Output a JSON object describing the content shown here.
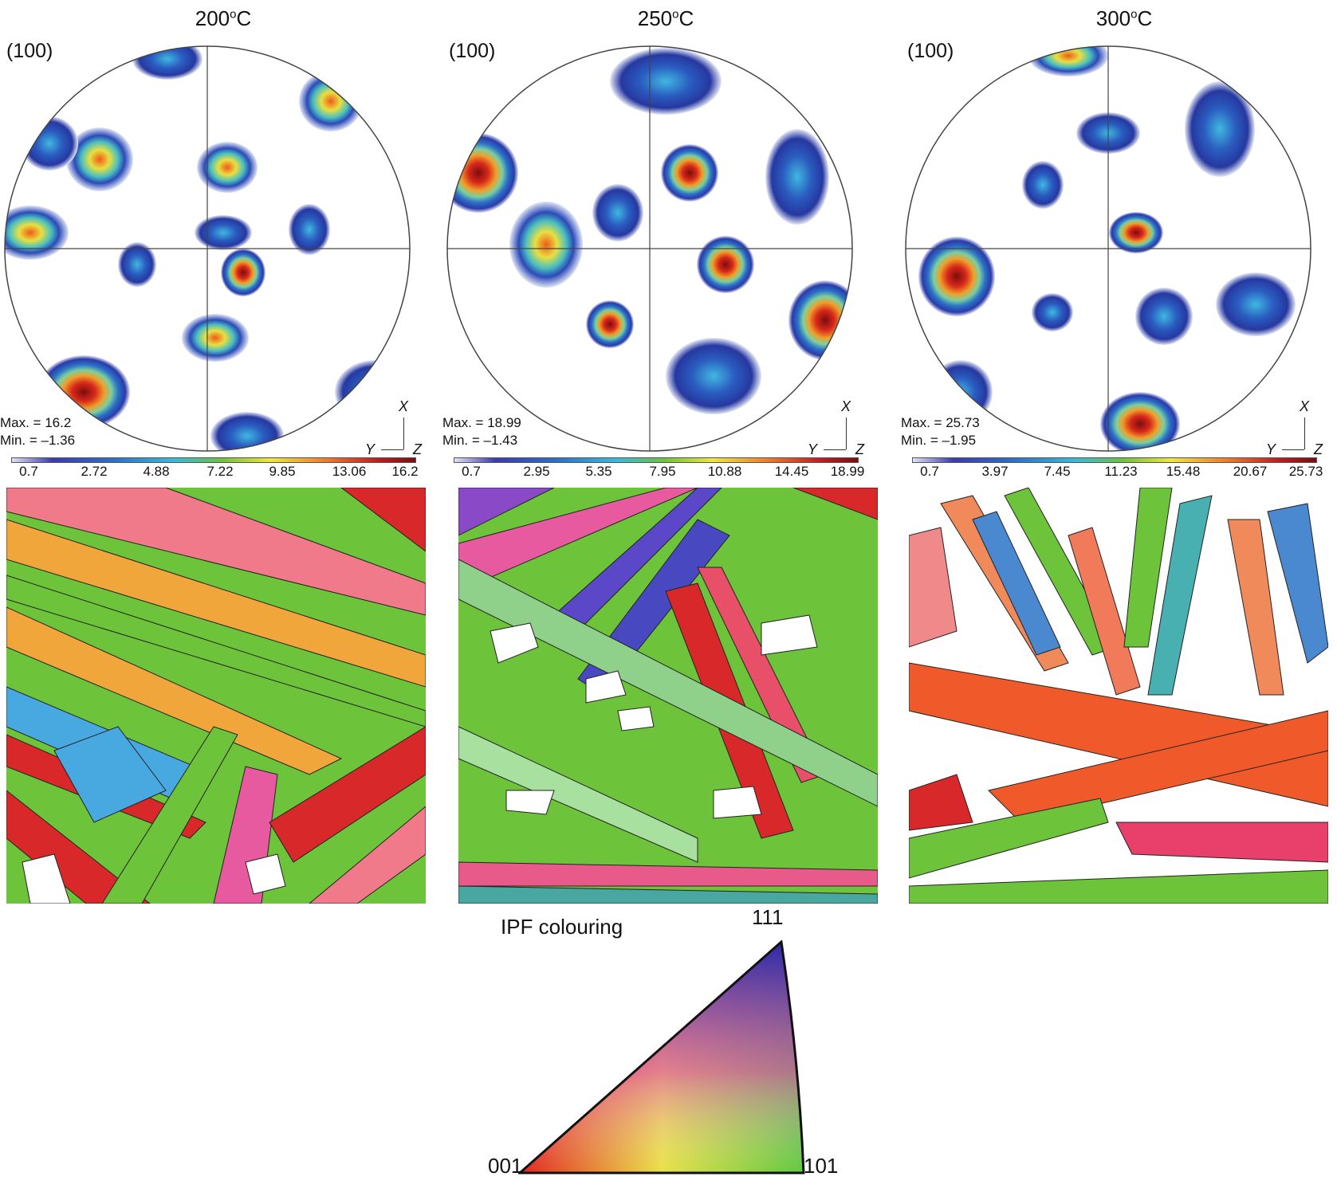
{
  "panels": [
    {
      "title": "200",
      "unit": "C",
      "plane": "(100)",
      "max": "Max. = 16.2",
      "min": "Min. = –1.36",
      "ticks": [
        "0.7",
        "2.72",
        "4.88",
        "7.22",
        "9.85",
        "13.06",
        "16.2"
      ]
    },
    {
      "title": "250",
      "unit": "C",
      "plane": "(100)",
      "max": "Max. = 18.99",
      "min": "Min. = –1.43",
      "ticks": [
        "0.7",
        "2.95",
        "5.35",
        "7.95",
        "10.88",
        "14.45",
        "18.99"
      ]
    },
    {
      "title": "300",
      "unit": "C",
      "plane": "(100)",
      "max": "Max. = 25.73",
      "min": "Min. = –1.95",
      "ticks": [
        "0.7",
        "3.97",
        "7.45",
        "11.23",
        "15.48",
        "20.67",
        "25.73"
      ]
    }
  ],
  "axis_labels": {
    "x": "X",
    "y": "Y",
    "z": "Z"
  },
  "degree_symbol": "o",
  "ipf": {
    "label": "IPF colouring",
    "top": "111",
    "left": "001",
    "right": "101"
  },
  "colors": {
    "low": "#3a3ab0",
    "mid": "#39b8e0",
    "green": "#6dc33a",
    "yellow": "#f0e63a",
    "orange": "#f07a2a",
    "red": "#c81e1e",
    "max": "#7a0d0d"
  }
}
